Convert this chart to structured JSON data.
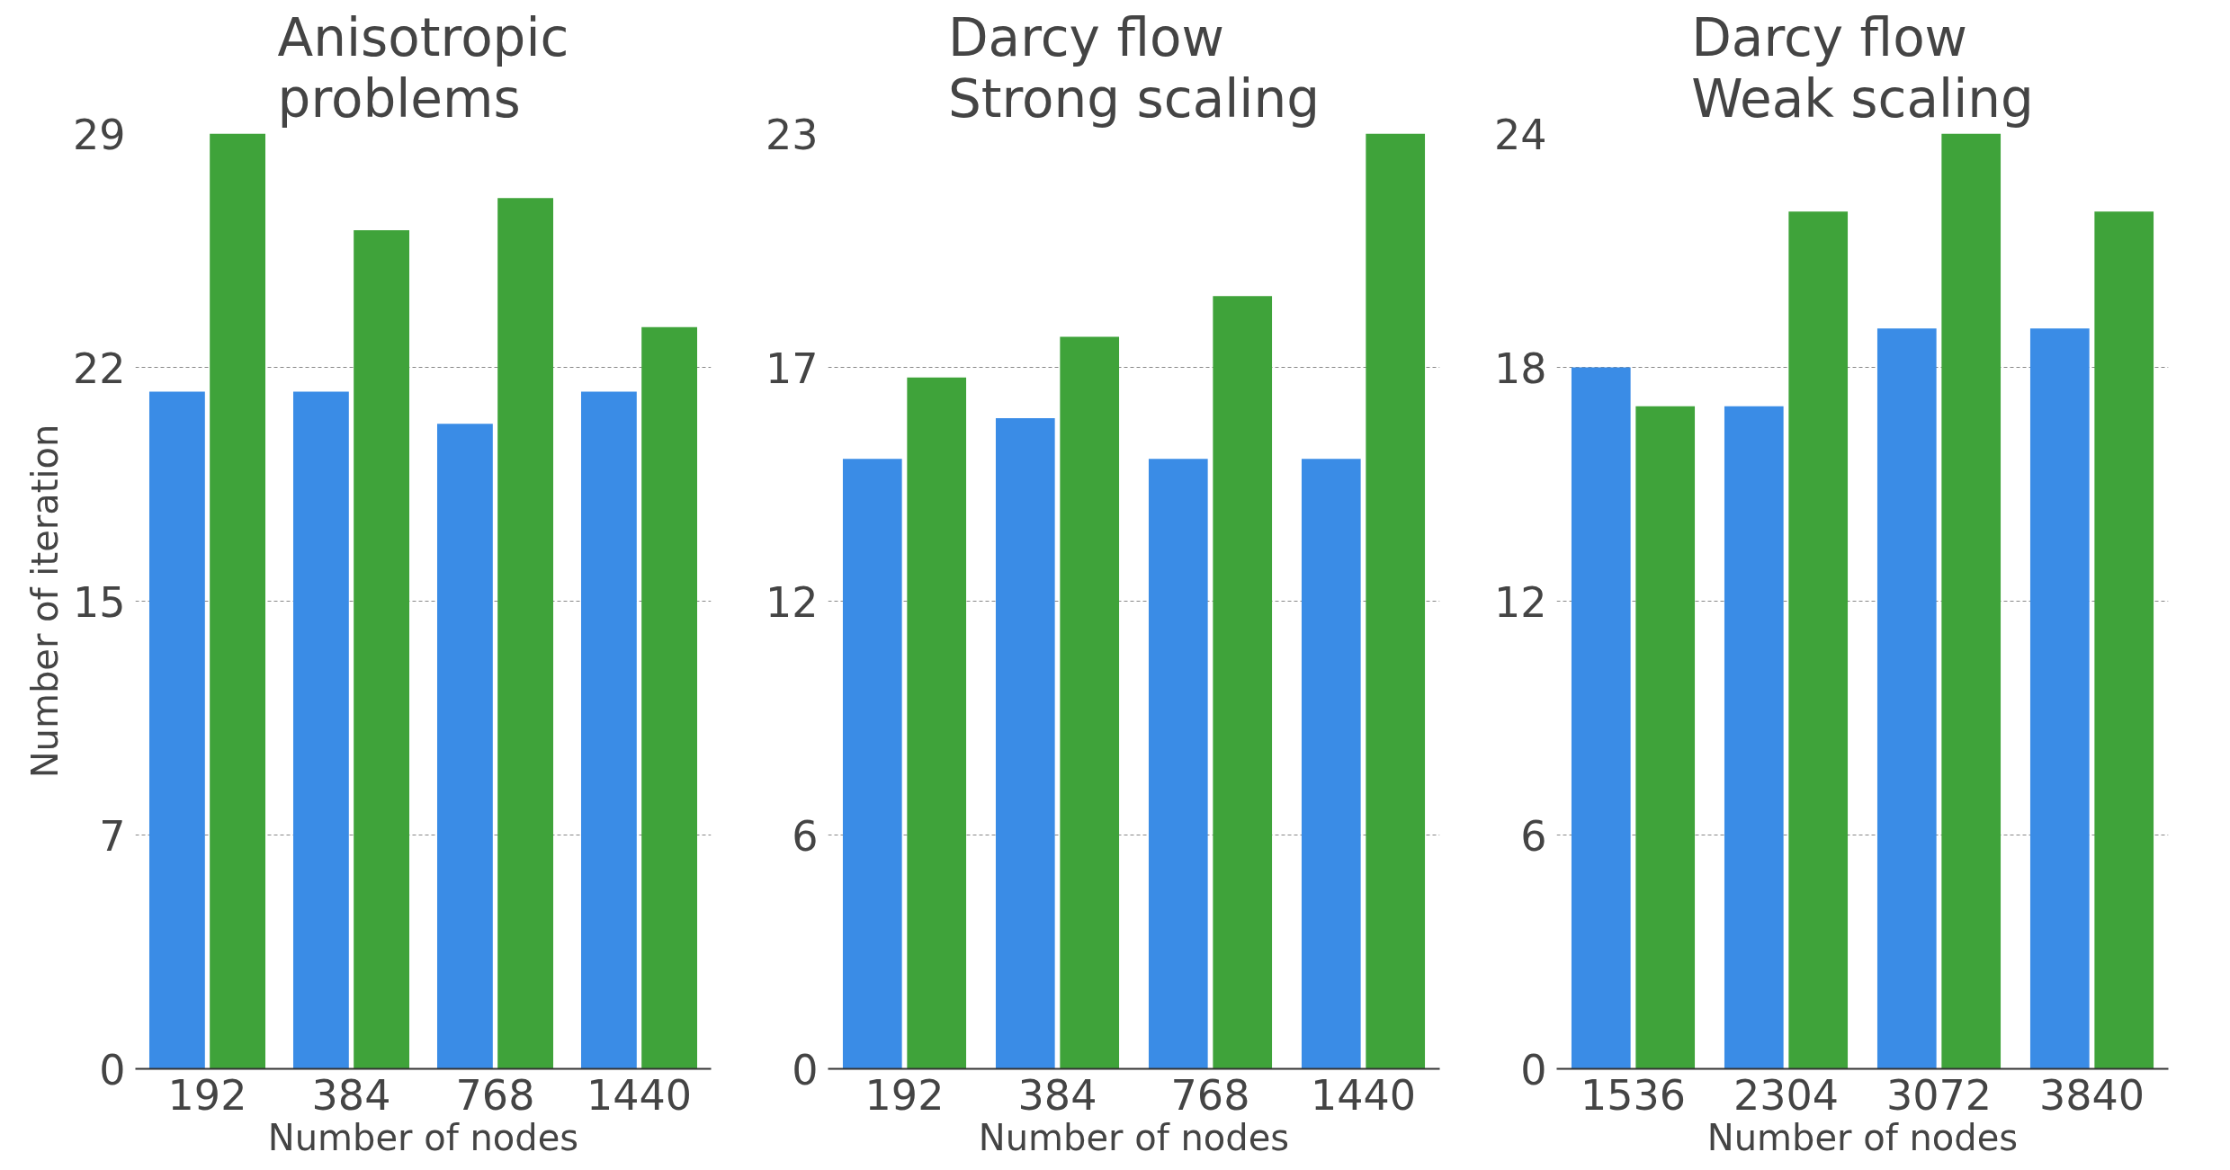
{
  "chart_data": [
    {
      "type": "bar",
      "title": "Anisotropic\nproblems",
      "xlabel": "Number of nodes",
      "ylabel": "Number of iteration",
      "categories": [
        "192",
        "384",
        "768",
        "1440"
      ],
      "series": [
        {
          "color": "#3a8ce6",
          "values": [
            21,
            21,
            20,
            21
          ]
        },
        {
          "color": "#3fa33a",
          "values": [
            29,
            26,
            27,
            23
          ]
        }
      ],
      "ylim": [
        0,
        29
      ],
      "yticks": [
        0,
        {
          "value": 7.25,
          "label": "7"
        },
        {
          "value": 14.5,
          "label": "15"
        },
        {
          "value": 21.75,
          "label": "22"
        },
        29
      ],
      "grid": "y"
    },
    {
      "type": "bar",
      "title": "Darcy flow\nStrong scaling",
      "xlabel": "Number of nodes",
      "categories": [
        "192",
        "384",
        "768",
        "1440"
      ],
      "series": [
        {
          "color": "#3a8ce6",
          "values": [
            15,
            16,
            15,
            15
          ]
        },
        {
          "color": "#3fa33a",
          "values": [
            17,
            18,
            19,
            23
          ]
        }
      ],
      "ylim": [
        0,
        23
      ],
      "yticks": [
        0,
        {
          "value": 5.75,
          "label": "6"
        },
        {
          "value": 11.5,
          "label": "12"
        },
        {
          "value": 17.25,
          "label": "17"
        },
        23
      ],
      "grid": "y"
    },
    {
      "type": "bar",
      "title": "Darcy flow\nWeak scaling",
      "xlabel": "Number of nodes",
      "categories": [
        "1536",
        "2304",
        "3072",
        "3840"
      ],
      "series": [
        {
          "color": "#3a8ce6",
          "values": [
            18,
            17,
            19,
            19
          ]
        },
        {
          "color": "#3fa33a",
          "values": [
            17,
            22,
            24,
            22
          ]
        }
      ],
      "ylim": [
        0,
        24
      ],
      "yticks": [
        0,
        6,
        12,
        18,
        24
      ],
      "grid": "y"
    }
  ]
}
